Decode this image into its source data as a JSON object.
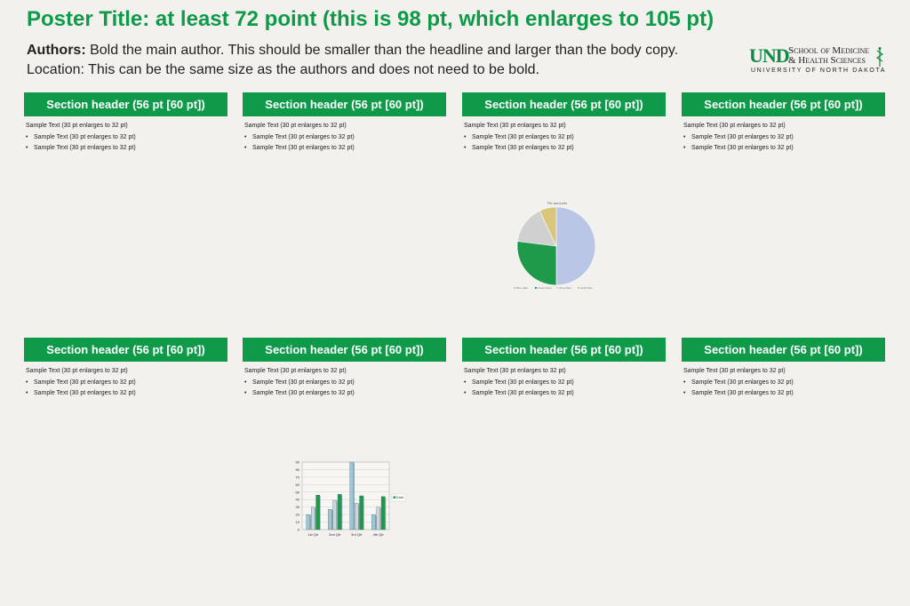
{
  "poster": {
    "title": "Poster Title: at least 72 point (this is 98 pt, which enlarges to 105 pt)",
    "authors_label": "Authors:",
    "authors_text": " Bold the main author. This should be smaller than the headline and larger than the body copy.",
    "location_text": "Location: This can be the same size as the authors and does not need to be bold."
  },
  "logo": {
    "und": "UND",
    "school_line1": "School of Medicine",
    "school_line2": "& Health Sciences",
    "university": "UNIVERSITY OF NORTH DAKOTA"
  },
  "sections": [
    {
      "header": "Section header (56 pt [60 pt])",
      "text": "Sample Text (30 pt enlarges to 32 pt)",
      "bullets": [
        "Sample Text (30 pt enlarges to 32 pt)",
        "Sample Text (30 pt enlarges to 32 pt)"
      ]
    },
    {
      "header": "Section header (56 pt [60 pt])",
      "text": "Sample Text (30 pt enlarges to 32 pt)",
      "bullets": [
        "Sample Text (30 pt enlarges to 32 pt)",
        "Sample Text (30 pt enlarges to 32 pt)"
      ]
    },
    {
      "header": "Section header (56 pt [60 pt])",
      "text": "Sample Text (30 pt enlarges to 32 pt)",
      "bullets": [
        "Sample Text (30 pt enlarges to 32 pt)",
        "Sample Text (30 pt enlarges to 32 pt)"
      ]
    },
    {
      "header": "Section header (56 pt [60 pt])",
      "text": "Sample Text (30 pt enlarges to 32 pt)",
      "bullets": [
        "Sample Text (30 pt enlarges to 32 pt)",
        "Sample Text (30 pt enlarges to 32 pt)"
      ]
    },
    {
      "header": "Section header (56 pt [60 pt])",
      "text": "Sample Text (30 pt enlarges to 32 pt)",
      "bullets": [
        "Sample Text (30 pt enlarges to 32 pt)",
        "Sample Text (30 pt enlarges to 32 pt)"
      ]
    },
    {
      "header": "Section header (56 pt [60 pt])",
      "text": "Sample Text (30 pt enlarges to 32 pt)",
      "bullets": [
        "Sample Text (30 pt enlarges to 32 pt)",
        "Sample Text (30 pt enlarges to 32 pt)"
      ]
    },
    {
      "header": "Section header (56 pt [60 pt])",
      "text": "Sample Text (30 pt enlarges to 32 pt)",
      "bullets": [
        "Sample Text (30 pt enlarges to 32 pt)",
        "Sample Text (30 pt enlarges to 32 pt)"
      ]
    },
    {
      "header": "Section header (56 pt [60 pt])",
      "text": "Sample Text (30 pt enlarges to 32 pt)",
      "bullets": [
        "Sample Text (30 pt enlarges to 32 pt)",
        "Sample Text (30 pt enlarges to 32 pt)"
      ]
    }
  ],
  "colors": {
    "accent": "#0f9a4a",
    "background": "#f3f1ee"
  },
  "chart_data": [
    {
      "type": "pie",
      "title": "Pie amounts",
      "categories": [
        "Blue data",
        "Green Data",
        "Gray Data",
        "Gold Data"
      ],
      "values": [
        50,
        27,
        16,
        7
      ],
      "colors": [
        "#b9c6e6",
        "#1f9a4a",
        "#d0d0d0",
        "#d8c77a"
      ],
      "legend": "bottom"
    },
    {
      "type": "bar",
      "categories": [
        "1st Qtr",
        "2nd Qtr",
        "3rd Qtr",
        "4th Qtr"
      ],
      "series": [
        {
          "name": "",
          "values": [
            20,
            27,
            90,
            20
          ]
        },
        {
          "name": "",
          "values": [
            30,
            39,
            35,
            30
          ]
        },
        {
          "name": "East",
          "values": [
            46,
            47,
            45,
            44
          ]
        }
      ],
      "series_colors": [
        "#9fc6d6",
        "#cfd6da",
        "#1f9a4a"
      ],
      "ylim": [
        0,
        90
      ],
      "yticks": [
        "0",
        "10",
        "20",
        "30",
        "40",
        "50",
        "60",
        "70",
        "80",
        "90"
      ],
      "legend": "right",
      "grid": true
    }
  ]
}
